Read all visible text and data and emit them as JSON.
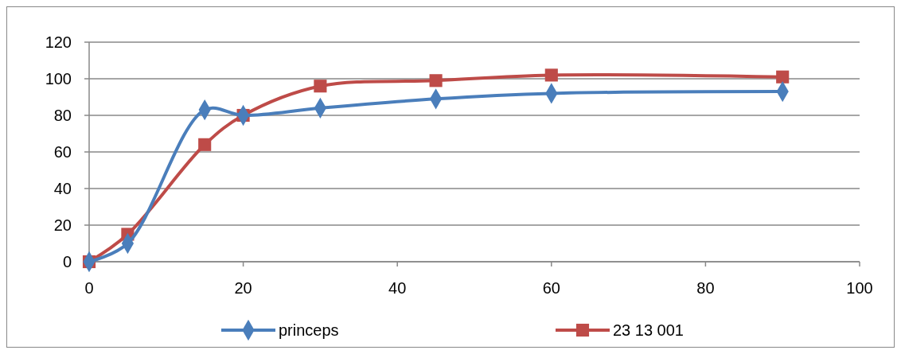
{
  "chart_data": {
    "type": "line",
    "x": [
      0,
      5,
      15,
      20,
      30,
      45,
      60,
      90
    ],
    "xlim": [
      0,
      100
    ],
    "xticks": [
      0,
      20,
      40,
      60,
      80,
      100
    ],
    "ylim": [
      0,
      120
    ],
    "yticks": [
      0,
      20,
      40,
      60,
      80,
      100,
      120
    ],
    "grid": "y",
    "legend": "bottom",
    "series": [
      {
        "name": "princeps",
        "color": "#4a7ebb",
        "marker": "diamond",
        "values": [
          0,
          10,
          83,
          80,
          84,
          89,
          92,
          93
        ]
      },
      {
        "name": "23 13 001",
        "color": "#be4b48",
        "marker": "square",
        "values": [
          0,
          15,
          64,
          80,
          96,
          99,
          102,
          101
        ]
      }
    ]
  }
}
